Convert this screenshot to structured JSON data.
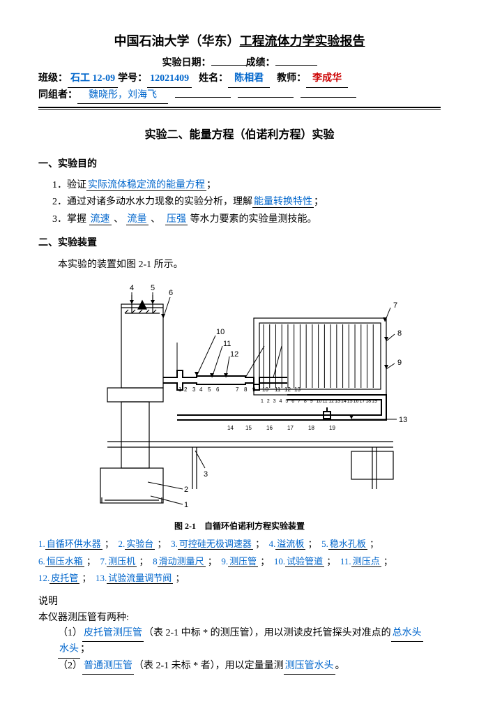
{
  "header": {
    "university": "中国石油大学（华东）",
    "report_title": "工程流体力学实验报告",
    "date_label": "实验日期：",
    "grade_label": "成绩：",
    "class_label": "班级：",
    "class_value": "石工 12-09",
    "sid_label": "学号：",
    "sid_value": "12021409",
    "name_label": "姓名：",
    "name_value": "陈相君",
    "teacher_label": "教师：",
    "teacher_value": "李成华",
    "team_label": "同组者：",
    "team_value": "魏晓彤，刘海飞"
  },
  "exp_title": "实验二、能量方程（伯诺利方程）实验",
  "section1": {
    "title": "一、实验目的",
    "items": [
      {
        "n": "1．",
        "pre": "验证",
        "u": "实际流体稳定流的能量方程",
        "post": "；"
      },
      {
        "n": "2．",
        "pre": "通过对诸多动水水力现象的实验分析，理解",
        "u": "能量转换特性",
        "post": "；"
      },
      {
        "n": "3．",
        "pre": "掌握",
        "links": [
          "流速",
          "流量",
          "压强"
        ],
        "post": "等水力要素的实验量测技能。"
      }
    ]
  },
  "section2": {
    "title": "二、实验装置",
    "intro": "本实验的装置如图 2-1 所示。",
    "caption": "图 2-1　自循环伯诺利方程实验装置",
    "legend": [
      {
        "n": "1.",
        "t": "自循环供水器"
      },
      {
        "n": "2.",
        "t": "实验台"
      },
      {
        "n": "3.",
        "t": "可控硅无极调速器"
      },
      {
        "n": "4.",
        "t": "溢流板"
      },
      {
        "n": "5.",
        "t": "稳水孔板"
      },
      {
        "n": "6.",
        "t": "恒压水箱"
      },
      {
        "n": "7.",
        "t": "测压机"
      },
      {
        "n": "8",
        "t": "滑动测量尺"
      },
      {
        "n": "9.",
        "t": "测压管"
      },
      {
        "n": "10.",
        "t": "试验管道"
      },
      {
        "n": "11.",
        "t": "测压点"
      },
      {
        "n": "12.",
        "t": "皮托管"
      },
      {
        "n": "13.",
        "t": "试验流量调节阀"
      }
    ]
  },
  "explain": {
    "title": "说明",
    "line1": "本仪器测压管有两种:",
    "i1_pre": "（1）",
    "i1_u1": "皮托管测压管",
    "i1_mid": "（表 2-1 中标 * 的测压管），用以测读皮托管探头对准点的",
    "i1_u2": "总水头",
    "i1_post": "；",
    "i2_pre": "（2）",
    "i2_u1": "普通测压管",
    "i2_mid": "（表 2-1 未标 * 者），用以定量量测",
    "i2_u2": "测压管水头",
    "i2_post": "。"
  },
  "svg": {
    "color": "#000",
    "labels_top": [
      "4",
      "5",
      "6",
      "10",
      "11",
      "12",
      "7",
      "8",
      "9"
    ],
    "labels_mid": [
      "1",
      "2",
      "3",
      "4",
      "5",
      "6",
      "7",
      "8",
      "9",
      "10",
      "11",
      "12",
      "13",
      "14",
      "15",
      "16",
      "17",
      "18",
      "19"
    ],
    "labels_right_small": [
      "14",
      "15",
      "16",
      "17",
      "18",
      "19"
    ],
    "labels_bottom": [
      "1",
      "2",
      "3"
    ],
    "label_13": "13"
  }
}
